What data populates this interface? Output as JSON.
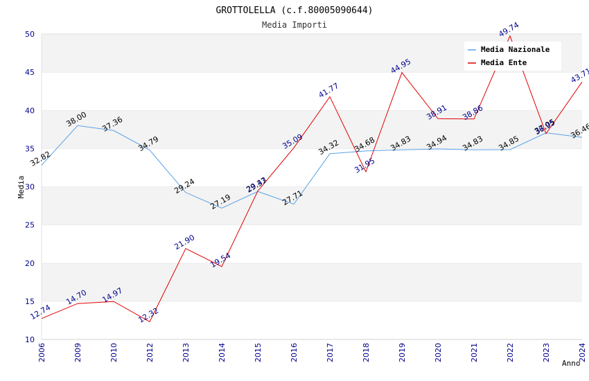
{
  "chart_data": {
    "type": "line",
    "title": "GROTTOLELLA (c.f.80005090644)",
    "subtitle": "Media Importi",
    "xlabel": "Anno",
    "ylabel": "Media",
    "ylim": [
      10,
      50
    ],
    "yticks": [
      10,
      15,
      20,
      25,
      30,
      35,
      40,
      45,
      50
    ],
    "grid": "horizontal bands",
    "legend_position": "top-right",
    "categories": [
      "2006",
      "2009",
      "2010",
      "2012",
      "2013",
      "2014",
      "2015",
      "2016",
      "2017",
      "2018",
      "2019",
      "2020",
      "2021",
      "2022",
      "2023",
      "2024"
    ],
    "series": [
      {
        "name": "Media Nazionale",
        "color": "#5aa0e6",
        "values": [
          32.82,
          38.0,
          37.36,
          34.79,
          29.24,
          27.19,
          29.37,
          27.71,
          34.32,
          34.68,
          34.83,
          34.94,
          34.83,
          34.85,
          37.05,
          36.46
        ],
        "labels": [
          "32.82",
          "38.00",
          "37.36",
          "34.79",
          "29.24",
          "27.19",
          "29.37",
          "27.71",
          "34.32",
          "34.68",
          "34.83",
          "34.94",
          "34.83",
          "34.85",
          "37.05",
          "36.46"
        ]
      },
      {
        "name": "Media Ente",
        "color": "#e00000",
        "values": [
          12.74,
          14.7,
          14.97,
          12.32,
          21.9,
          19.54,
          29.43,
          35.09,
          41.77,
          31.95,
          44.95,
          38.91,
          38.86,
          49.74,
          36.95,
          43.71
        ],
        "labels": [
          "12.74",
          "14.70",
          "14.97",
          "12.32",
          "21.90",
          "19.54",
          "29.43",
          "35.09",
          "41.77",
          "31.95",
          "44.95",
          "38.91",
          "38.86",
          "49.74",
          "36.95",
          "43.71"
        ]
      }
    ]
  }
}
